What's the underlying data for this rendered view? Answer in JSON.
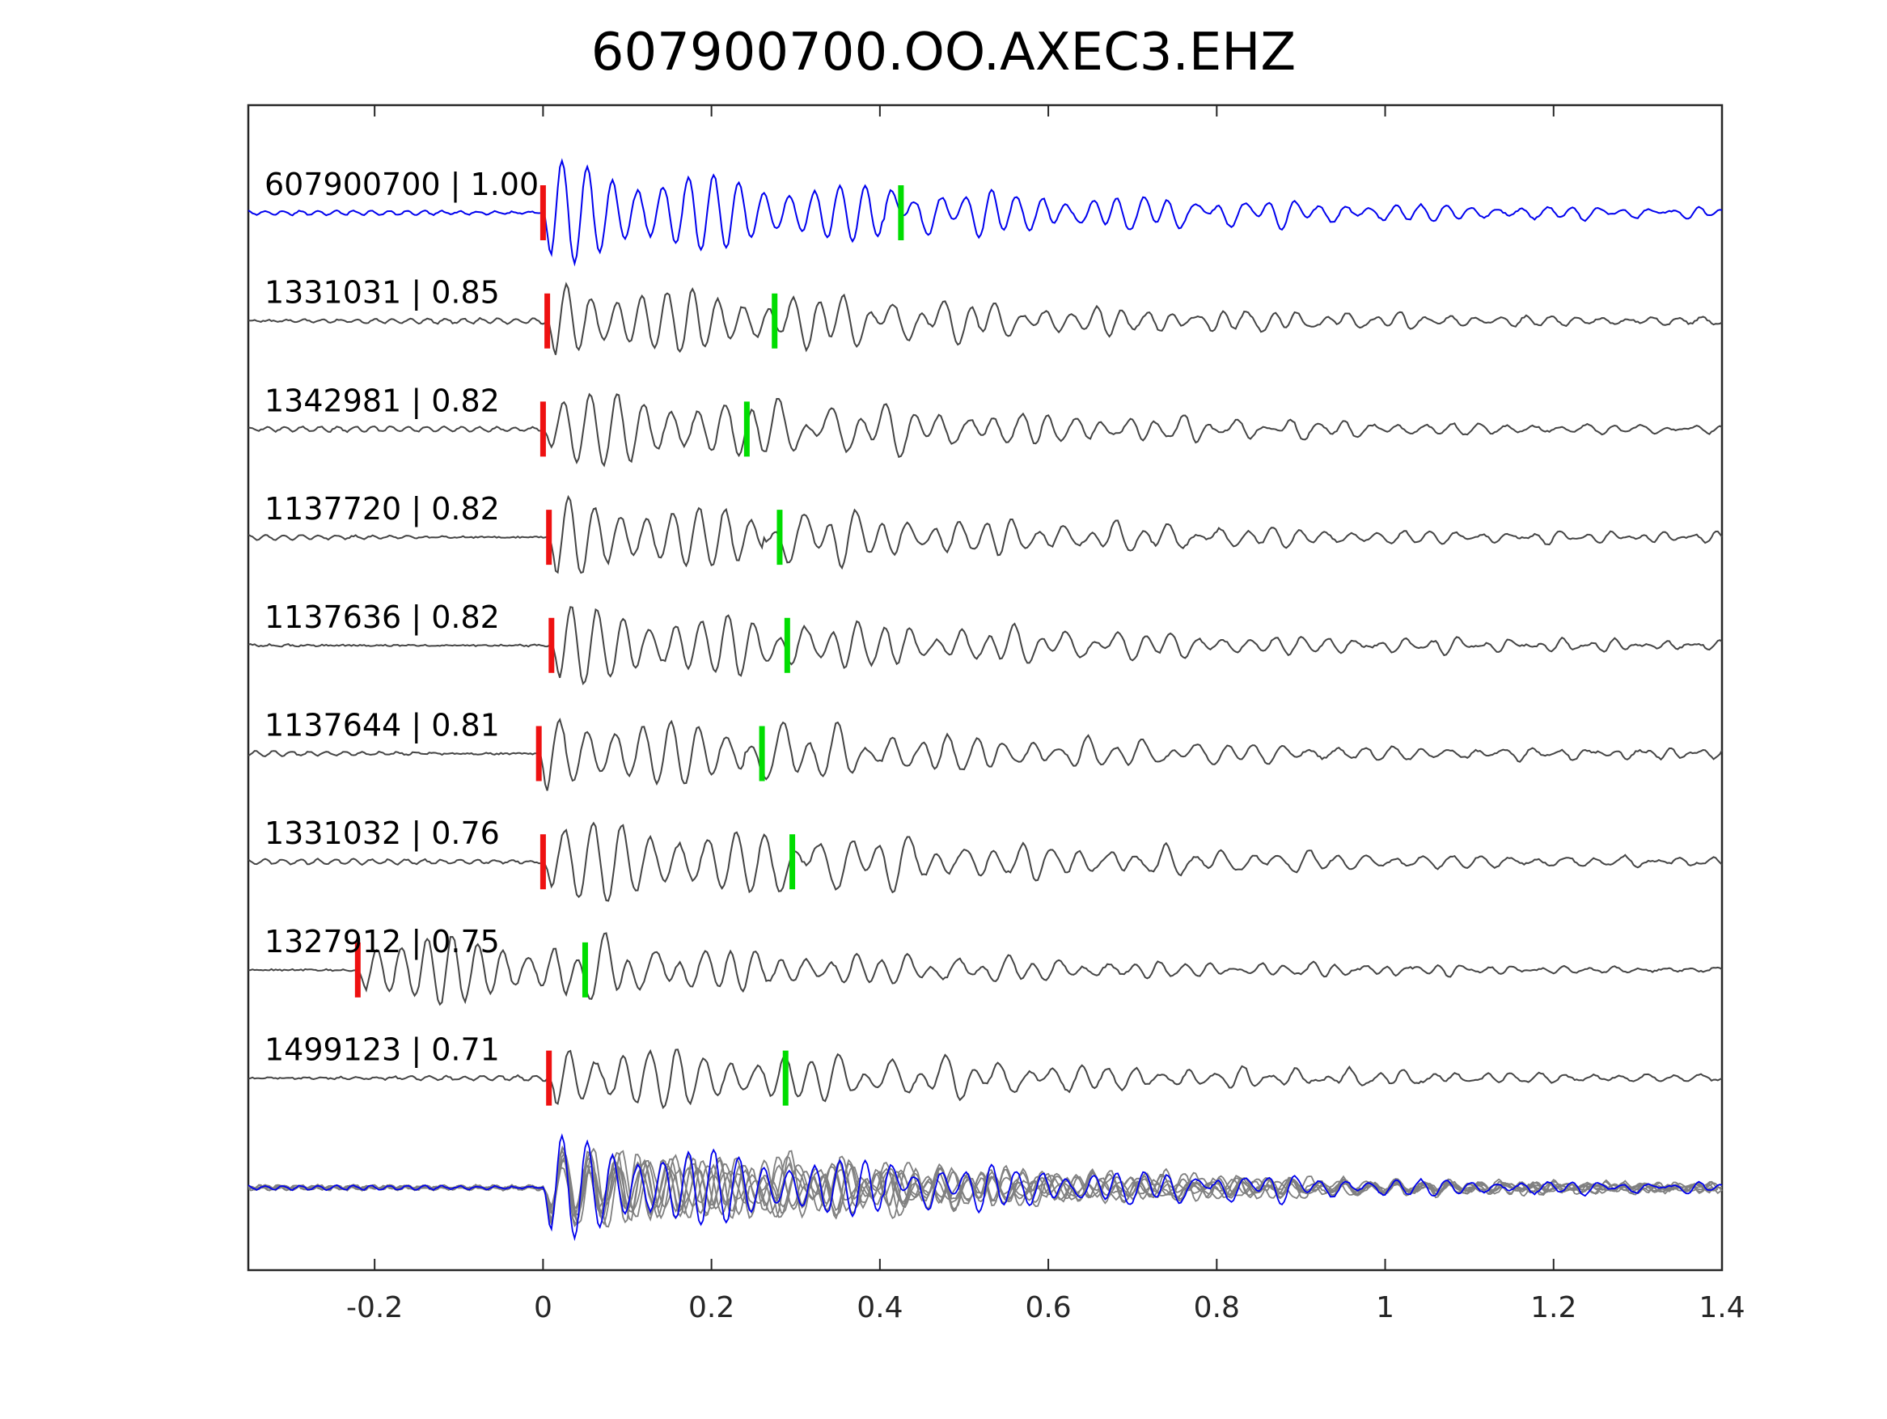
{
  "chart_data": {
    "type": "line",
    "title": "607900700.OO.AXEC3.EHZ",
    "xlabel": "",
    "ylabel": "",
    "xlim": [
      -0.35,
      1.4
    ],
    "x_ticks": [
      -0.2,
      0,
      0.2,
      0.4,
      0.6,
      0.8,
      1,
      1.2,
      1.4
    ],
    "x_tick_labels": [
      "-0.2",
      "0",
      "0.2",
      "0.4",
      "0.6",
      "0.8",
      "1",
      "1.2",
      "1.4"
    ],
    "colors": {
      "master": "#0000ee",
      "trace": "#444444",
      "stack": "#808080",
      "p_pick": "#ee1111",
      "s_pick": "#00dd00"
    },
    "series": [
      {
        "name": "607900700 | 1.00",
        "label": "607900700 | 1.00",
        "event_id": "607900700",
        "cc": 1.0,
        "role": "master",
        "p_pick": 0.0,
        "s_pick": 0.425,
        "onset": 0.0,
        "period": 0.03,
        "amp": 1.3
      },
      {
        "name": "1331031 | 0.85",
        "label": "1331031 | 0.85",
        "event_id": "1331031",
        "cc": 0.85,
        "role": "neighbor",
        "p_pick": 0.005,
        "s_pick": 0.275,
        "onset": 0.005,
        "period": 0.03,
        "amp": 1.0
      },
      {
        "name": "1342981 | 0.82",
        "label": "1342981 | 0.82",
        "event_id": "1342981",
        "cc": 0.82,
        "role": "neighbor",
        "p_pick": 0.0,
        "s_pick": 0.242,
        "onset": 0.0,
        "period": 0.032,
        "amp": 1.0
      },
      {
        "name": "1137720 | 0.82",
        "label": "1137720 | 0.82",
        "event_id": "1137720",
        "cc": 0.82,
        "role": "neighbor",
        "p_pick": 0.007,
        "s_pick": 0.281,
        "onset": 0.007,
        "period": 0.031,
        "amp": 1.0
      },
      {
        "name": "1137636 | 0.82",
        "label": "1137636 | 0.82",
        "event_id": "1137636",
        "cc": 0.82,
        "role": "neighbor",
        "p_pick": 0.01,
        "s_pick": 0.29,
        "onset": 0.01,
        "period": 0.031,
        "amp": 1.0
      },
      {
        "name": "1137644 | 0.81",
        "label": "1137644 | 0.81",
        "event_id": "1137644",
        "cc": 0.81,
        "role": "neighbor",
        "p_pick": -0.005,
        "s_pick": 0.26,
        "onset": -0.005,
        "period": 0.033,
        "amp": 1.0
      },
      {
        "name": "1331032 | 0.76",
        "label": "1331032 | 0.76",
        "event_id": "1331032",
        "cc": 0.76,
        "role": "neighbor",
        "p_pick": 0.0,
        "s_pick": 0.296,
        "onset": 0.0,
        "period": 0.034,
        "amp": 1.1
      },
      {
        "name": "1327912 | 0.75",
        "label": "1327912 | 0.75",
        "event_id": "1327912",
        "cc": 0.75,
        "role": "neighbor",
        "p_pick": -0.22,
        "s_pick": 0.05,
        "onset": -0.22,
        "period": 0.03,
        "amp": 1.0
      },
      {
        "name": "1499123 | 0.71",
        "label": "1499123 | 0.71",
        "event_id": "1499123",
        "cc": 0.71,
        "role": "neighbor",
        "p_pick": 0.007,
        "s_pick": 0.288,
        "onset": 0.007,
        "period": 0.032,
        "amp": 0.9
      }
    ],
    "stack": {
      "name": "overlay",
      "description_visible": false
    },
    "grid": false,
    "legend": "none"
  }
}
